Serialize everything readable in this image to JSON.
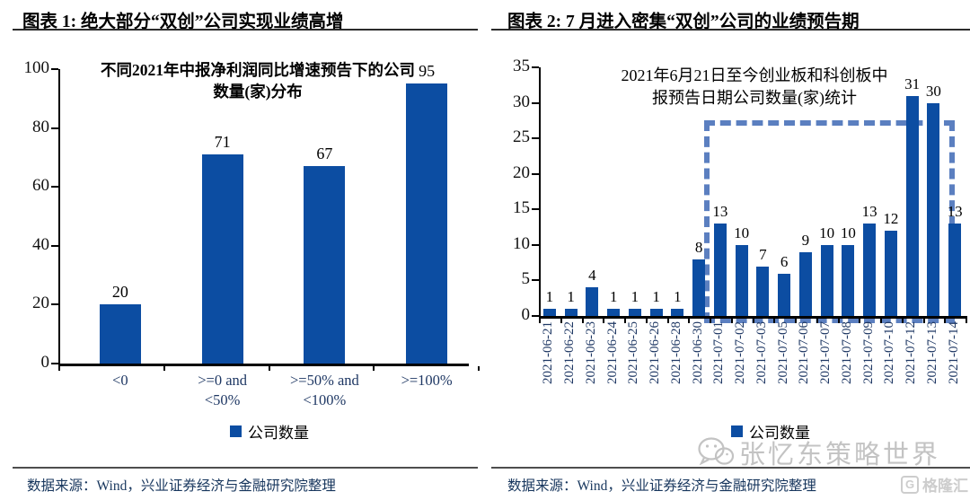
{
  "page": {
    "watermark_text": "张忆东策略世界",
    "logo_text": "格隆汇"
  },
  "figures": [
    {
      "caption": "图表 1: 绝大部分“双创”公司实现业绩高增",
      "source": "数据来源：Wind，兴业证券经济与金融研究院整理"
    },
    {
      "caption": "图表 2: 7 月进入密集“双创”公司的业绩预告期",
      "source": "数据来源：Wind，兴业证券经济与金融研究院整理"
    }
  ],
  "chart_data": [
    {
      "type": "bar",
      "title": "不同2021年中报净利润同比增速预告下的公司数量(家)分布",
      "title_lines": [
        "不同2021年中报净利润同比增速预告下的公司",
        "数量(家)分布"
      ],
      "categories": [
        "<0",
        ">=0 and <50%",
        ">=50% and <100%",
        ">=100%"
      ],
      "category_lines": [
        [
          "<0"
        ],
        [
          ">=0 and",
          "<50%"
        ],
        [
          ">=50% and",
          "<100%"
        ],
        [
          ">=100%"
        ]
      ],
      "values": [
        20,
        71,
        67,
        95
      ],
      "xlabel": "",
      "ylabel": "",
      "ylim": [
        0,
        100
      ],
      "yticks": [
        0,
        20,
        40,
        60,
        80,
        100
      ],
      "grid": false,
      "legend": [
        "公司数量"
      ],
      "legend_position": "bottom",
      "bar_color": "#0C4DA2"
    },
    {
      "type": "bar",
      "title": "2021年6月21日至今创业板和科创板中报预告日期公司数量(家)统计",
      "title_lines": [
        "2021年6月21日至今创业板和科创板中",
        "报预告日期公司数量(家)统计"
      ],
      "categories": [
        "2021-06-21",
        "2021-06-22",
        "2021-06-23",
        "2021-06-24",
        "2021-06-25",
        "2021-06-26",
        "2021-06-28",
        "2021-06-30",
        "2021-07-01",
        "2021-07-02",
        "2021-07-03",
        "2021-07-05",
        "2021-07-06",
        "2021-07-07",
        "2021-07-08",
        "2021-07-09",
        "2021-07-10",
        "2021-07-12",
        "2021-07-13",
        "2021-07-14"
      ],
      "values": [
        1,
        1,
        4,
        1,
        1,
        1,
        1,
        8,
        13,
        10,
        7,
        6,
        9,
        10,
        10,
        13,
        12,
        31,
        30,
        13
      ],
      "xlabel": "",
      "ylabel": "",
      "ylim": [
        0,
        35
      ],
      "yticks": [
        0,
        5,
        10,
        15,
        20,
        25,
        30,
        35
      ],
      "grid": false,
      "legend": [
        "公司数量"
      ],
      "legend_position": "bottom",
      "bar_color": "#0C4DA2",
      "highlight_box": {
        "from_category": "2021-07-01",
        "to_category": "2021-07-14",
        "top_value": 27.5,
        "style": "dashed",
        "color": "#5B7FC0"
      }
    }
  ]
}
